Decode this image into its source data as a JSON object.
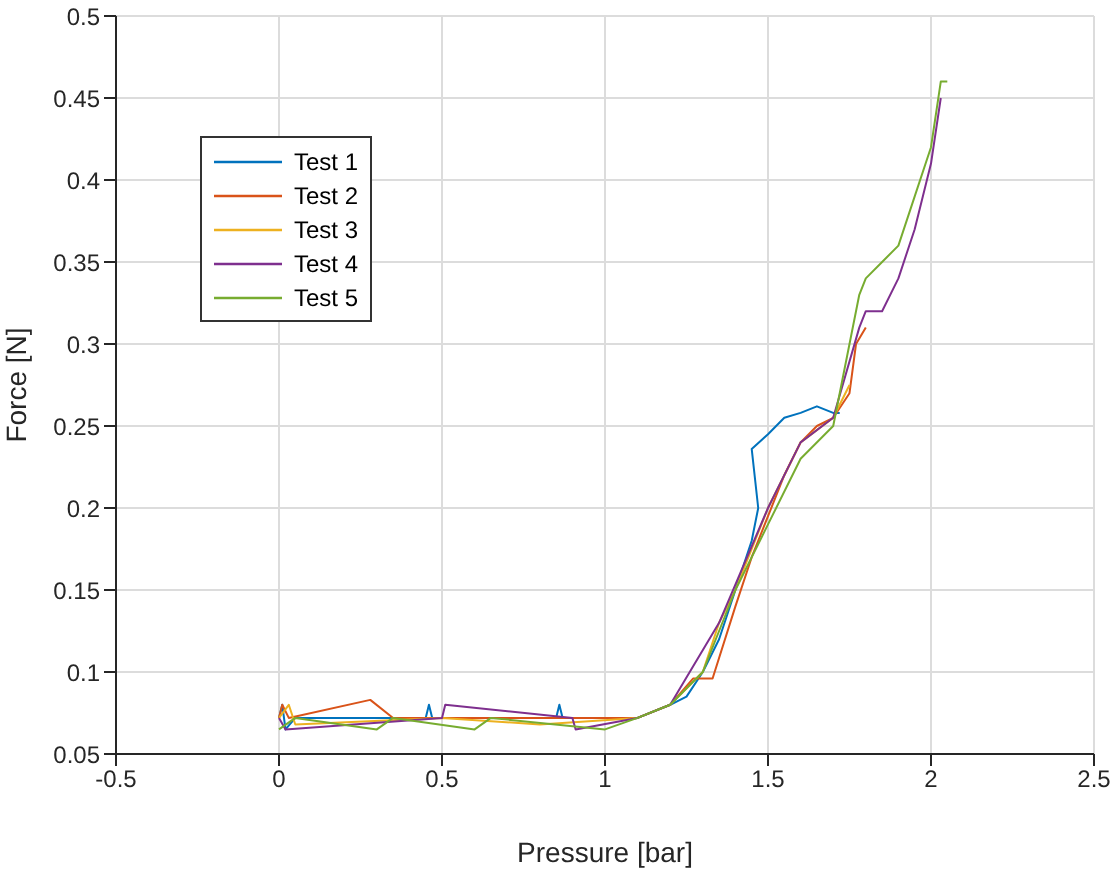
{
  "chart_data": {
    "type": "line",
    "xlabel": "Pressure [bar]",
    "ylabel": "Force [N]",
    "xlim": [
      -0.5,
      2.5
    ],
    "xticks": [
      -0.5,
      0,
      0.5,
      1,
      1.5,
      2,
      2.5
    ],
    "ylim": [
      0.05,
      0.5
    ],
    "yticks": [
      0.05,
      0.1,
      0.15,
      0.2,
      0.25,
      0.3,
      0.35,
      0.4,
      0.45,
      0.5
    ],
    "grid": true,
    "legend": "top left",
    "marker": "none",
    "line_style": "solid",
    "series": [
      {
        "name": "Test 1",
        "color": "#0072bd",
        "x": [
          0,
          0.01,
          0.02,
          0.05,
          0.45,
          0.46,
          0.47,
          0.6,
          0.85,
          0.86,
          0.87,
          1.1,
          1.2,
          1.25,
          1.3,
          1.35,
          1.4,
          1.45,
          1.47,
          1.45,
          1.5,
          1.55,
          1.6,
          1.65,
          1.7,
          1.72
        ],
        "values": [
          0.072,
          0.08,
          0.065,
          0.072,
          0.072,
          0.08,
          0.072,
          0.072,
          0.072,
          0.08,
          0.072,
          0.072,
          0.08,
          0.085,
          0.1,
          0.12,
          0.15,
          0.18,
          0.2,
          0.236,
          0.245,
          0.255,
          0.258,
          0.262,
          0.258,
          0.258
        ]
      },
      {
        "name": "Test 2",
        "color": "#d95319",
        "x": [
          0,
          0.01,
          0.03,
          0.28,
          0.35,
          1.1,
          1.2,
          1.27,
          1.33,
          1.4,
          1.45,
          1.47,
          1.55,
          1.6,
          1.65,
          1.7,
          1.75,
          1.77,
          1.8
        ],
        "values": [
          0.072,
          0.08,
          0.072,
          0.083,
          0.072,
          0.072,
          0.08,
          0.096,
          0.096,
          0.14,
          0.17,
          0.18,
          0.22,
          0.24,
          0.25,
          0.255,
          0.27,
          0.3,
          0.31
        ]
      },
      {
        "name": "Test 3",
        "color": "#edb120",
        "x": [
          0,
          0.03,
          0.05,
          0.5,
          0.8,
          1.1,
          1.2,
          1.3,
          1.35,
          1.4,
          1.5,
          1.6,
          1.7,
          1.75
        ],
        "values": [
          0.072,
          0.08,
          0.068,
          0.072,
          0.068,
          0.072,
          0.08,
          0.1,
          0.13,
          0.15,
          0.2,
          0.24,
          0.255,
          0.275
        ]
      },
      {
        "name": "Test 4",
        "color": "#7e2f8e",
        "x": [
          0,
          0.02,
          0.5,
          0.51,
          0.9,
          0.91,
          1.1,
          1.2,
          1.35,
          1.5,
          1.6,
          1.7,
          1.78,
          1.8,
          1.85,
          1.9,
          1.95,
          2.0,
          2.03
        ],
        "values": [
          0.072,
          0.065,
          0.072,
          0.08,
          0.072,
          0.065,
          0.072,
          0.08,
          0.13,
          0.2,
          0.24,
          0.255,
          0.31,
          0.32,
          0.32,
          0.34,
          0.37,
          0.41,
          0.45
        ]
      },
      {
        "name": "Test 5",
        "color": "#77ac30",
        "x": [
          0,
          0.05,
          0.3,
          0.35,
          0.6,
          0.65,
          1.0,
          1.1,
          1.2,
          1.3,
          1.4,
          1.5,
          1.6,
          1.7,
          1.78,
          1.8,
          1.85,
          1.9,
          1.95,
          2.0,
          2.03,
          2.05
        ],
        "values": [
          0.065,
          0.072,
          0.065,
          0.072,
          0.065,
          0.072,
          0.065,
          0.072,
          0.08,
          0.1,
          0.15,
          0.19,
          0.23,
          0.25,
          0.33,
          0.34,
          0.35,
          0.36,
          0.39,
          0.42,
          0.46,
          0.46
        ]
      }
    ]
  }
}
